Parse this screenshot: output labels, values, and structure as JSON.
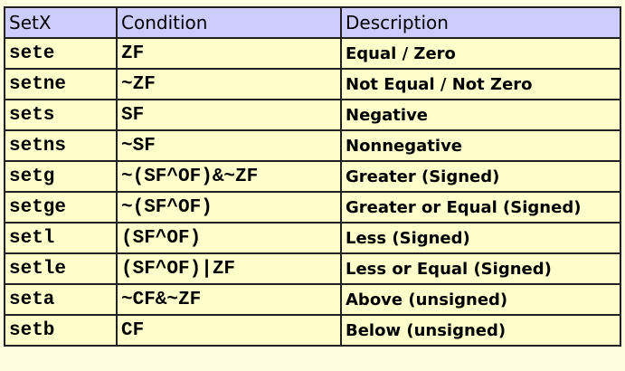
{
  "colors": {
    "header_bg": "#ccccff",
    "body_bg": "#ffffcc",
    "border": "#222222"
  },
  "table": {
    "headers": [
      "SetX",
      "Condition",
      "Description"
    ],
    "rows": [
      [
        "sete",
        "ZF",
        "Equal / Zero"
      ],
      [
        "setne",
        "~ZF",
        "Not Equal / Not Zero"
      ],
      [
        "sets",
        "SF",
        "Negative"
      ],
      [
        "setns",
        "~SF",
        "Nonnegative"
      ],
      [
        "setg",
        "~(SF^OF)&~ZF",
        "Greater (Signed)"
      ],
      [
        "setge",
        "~(SF^OF)",
        "Greater or Equal (Signed)"
      ],
      [
        "setl",
        "(SF^OF)",
        "Less (Signed)"
      ],
      [
        "setle",
        "(SF^OF)|ZF",
        "Less or Equal (Signed)"
      ],
      [
        "seta",
        "~CF&~ZF",
        "Above (unsigned)"
      ],
      [
        "setb",
        "CF",
        "Below (unsigned)"
      ]
    ]
  }
}
